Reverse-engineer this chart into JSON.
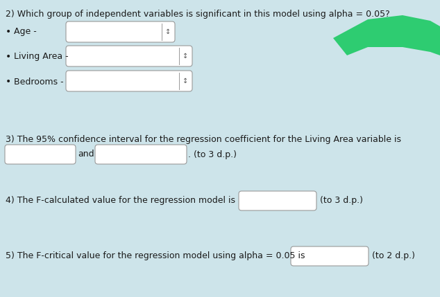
{
  "background_color": "#cde4ea",
  "title_q2": "2) Which group of independent variables is significant in this model using alpha = 0.05?",
  "bullet_labels": [
    "Age -",
    "Living Area -",
    "Bedrooms -"
  ],
  "text_q3": "3) The 95% confidence interval for the regression coefficient for the Living Area variable is",
  "text_q4": "4) The F-calculated value for the regression model is",
  "text_q5": "5) The F-critical value for the regression model using alpha = 0.05 is",
  "font_size": 9.0,
  "text_color": "#1a1a1a",
  "box_facecolor": "#ffffff",
  "box_edgecolor": "#999999",
  "green_color": "#2ecc71"
}
